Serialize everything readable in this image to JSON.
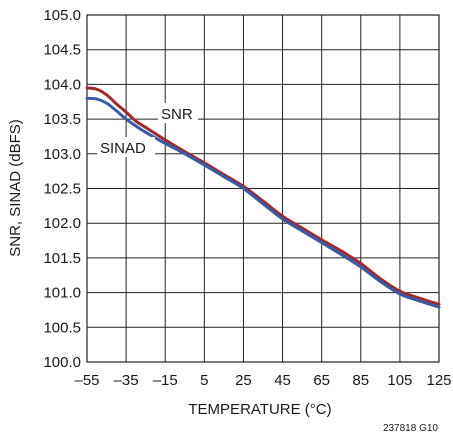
{
  "chart_data": {
    "type": "line",
    "xlabel": "TEMPERATURE (°C)",
    "ylabel": "SNR, SINAD (dBFS)",
    "xlim": [
      -55,
      125
    ],
    "ylim": [
      100.0,
      105.0
    ],
    "x_ticks": [
      "–55",
      "–35",
      "–15",
      "5",
      "25",
      "45",
      "65",
      "85",
      "105",
      "125"
    ],
    "x_tick_values": [
      -55,
      -35,
      -15,
      5,
      25,
      45,
      65,
      85,
      105,
      125
    ],
    "y_ticks": [
      "100.0",
      "100.5",
      "101.0",
      "101.5",
      "102.0",
      "102.5",
      "103.0",
      "103.5",
      "104.0",
      "104.5",
      "105.0"
    ],
    "y_tick_values": [
      100.0,
      100.5,
      101.0,
      101.5,
      102.0,
      102.5,
      103.0,
      103.5,
      104.0,
      104.5,
      105.0
    ],
    "grid": true,
    "series": [
      {
        "name": "SNR",
        "color": "#a0282a",
        "x": [
          -55,
          -50,
          -45,
          -40,
          -35,
          -30,
          -25,
          -15,
          -5,
          5,
          15,
          25,
          35,
          45,
          55,
          65,
          75,
          85,
          95,
          105,
          115,
          125
        ],
        "y": [
          103.95,
          103.93,
          103.85,
          103.72,
          103.6,
          103.47,
          103.38,
          103.2,
          103.03,
          102.87,
          102.7,
          102.53,
          102.32,
          102.1,
          101.93,
          101.76,
          101.6,
          101.42,
          101.2,
          101.02,
          100.92,
          100.83
        ]
      },
      {
        "name": "SINAD",
        "color": "#3a5aa8",
        "x": [
          -55,
          -50,
          -45,
          -40,
          -35,
          -30,
          -25,
          -15,
          -5,
          5,
          15,
          25,
          35,
          45,
          55,
          65,
          75,
          85,
          95,
          105,
          115,
          125
        ],
        "y": [
          103.8,
          103.79,
          103.73,
          103.62,
          103.5,
          103.4,
          103.31,
          103.15,
          103.0,
          102.84,
          102.67,
          102.5,
          102.28,
          102.06,
          101.89,
          101.72,
          101.55,
          101.37,
          101.16,
          100.98,
          100.88,
          100.79
        ]
      }
    ]
  },
  "series_labels": {
    "snr": "SNR",
    "sinad": "SINAD"
  },
  "figure_id": "237818 G10"
}
